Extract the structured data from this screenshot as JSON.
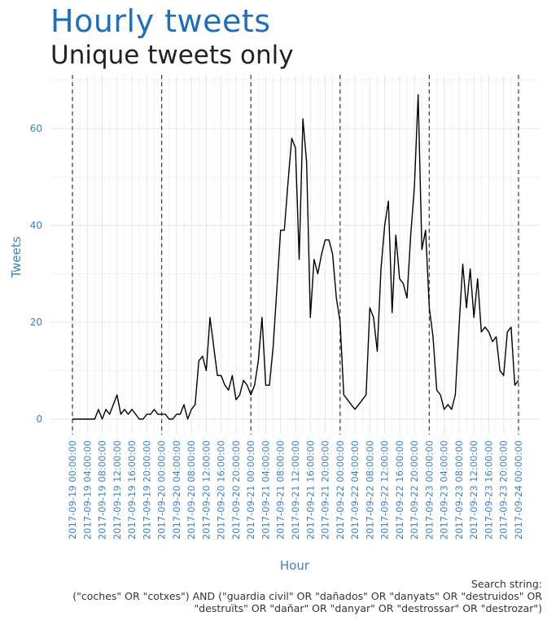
{
  "chart_data": {
    "type": "line",
    "title": "Hourly tweets",
    "subtitle": "Unique tweets only",
    "xlabel": "Hour",
    "ylabel": "Tweets",
    "ylim": [
      -3,
      70
    ],
    "y_ticks": [
      0,
      20,
      40,
      60
    ],
    "grid": true,
    "x_tick_labels": [
      "2017-09-19 00:00:00",
      "2017-09-19 04:00:00",
      "2017-09-19 08:00:00",
      "2017-09-19 12:00:00",
      "2017-09-19 16:00:00",
      "2017-09-19 20:00:00",
      "2017-09-20 00:00:00",
      "2017-09-20 04:00:00",
      "2017-09-20 08:00:00",
      "2017-09-20 12:00:00",
      "2017-09-20 16:00:00",
      "2017-09-20 20:00:00",
      "2017-09-21 00:00:00",
      "2017-09-21 04:00:00",
      "2017-09-21 08:00:00",
      "2017-09-21 12:00:00",
      "2017-09-21 16:00:00",
      "2017-09-21 20:00:00",
      "2017-09-22 00:00:00",
      "2017-09-22 04:00:00",
      "2017-09-22 08:00:00",
      "2017-09-22 12:00:00",
      "2017-09-22 16:00:00",
      "2017-09-22 20:00:00",
      "2017-09-23 00:00:00",
      "2017-09-23 04:00:00",
      "2017-09-23 08:00:00",
      "2017-09-23 12:00:00",
      "2017-09-23 16:00:00",
      "2017-09-23 20:00:00",
      "2017-09-24 00:00:00"
    ],
    "day_markers": [
      "2017-09-19 00:00:00",
      "2017-09-20 00:00:00",
      "2017-09-21 00:00:00",
      "2017-09-22 00:00:00",
      "2017-09-23 00:00:00",
      "2017-09-24 00:00:00"
    ],
    "x_start": "2017-09-19 00:00:00",
    "x_step": "1 hour",
    "values": [
      0,
      0,
      0,
      0,
      0,
      0,
      0,
      2,
      0,
      2,
      1,
      3,
      5,
      1,
      2,
      1,
      2,
      1,
      0,
      0,
      1,
      1,
      2,
      1,
      1,
      1,
      0,
      0,
      1,
      1,
      3,
      0,
      2,
      3,
      12,
      13,
      10,
      21,
      15,
      9,
      9,
      7,
      6,
      9,
      4,
      5,
      8,
      7,
      5,
      7,
      12,
      21,
      7,
      7,
      15,
      27,
      39,
      39,
      49,
      58,
      56,
      33,
      62,
      53,
      21,
      33,
      30,
      34,
      37,
      37,
      34,
      25,
      20,
      5,
      4,
      3,
      2,
      3,
      4,
      5,
      23,
      21,
      14,
      31,
      40,
      45,
      22,
      38,
      29,
      28,
      25,
      38,
      48,
      67,
      35,
      39,
      23,
      17,
      6,
      5,
      2,
      3,
      2,
      5,
      19,
      32,
      23,
      31,
      21,
      29,
      18,
      19,
      18,
      16,
      17,
      10,
      9,
      18,
      19,
      7,
      8
    ]
  },
  "caption": {
    "line1": "Search string:",
    "line2": "(\"coches\" OR \"cotxes\") AND (\"guardia civil\" OR \"dañados\" OR \"danyats\" OR \"destruidos\" OR",
    "line3": "\"destruïts\" OR \"dañar\" OR \"danyar\" OR \"destrossar\" OR \"destrozar\")"
  },
  "colors": {
    "accent": "#3d82c4",
    "title": "#1f6fbf",
    "line": "#000000",
    "grid": "#e6e6e6",
    "marker": "#444444"
  }
}
